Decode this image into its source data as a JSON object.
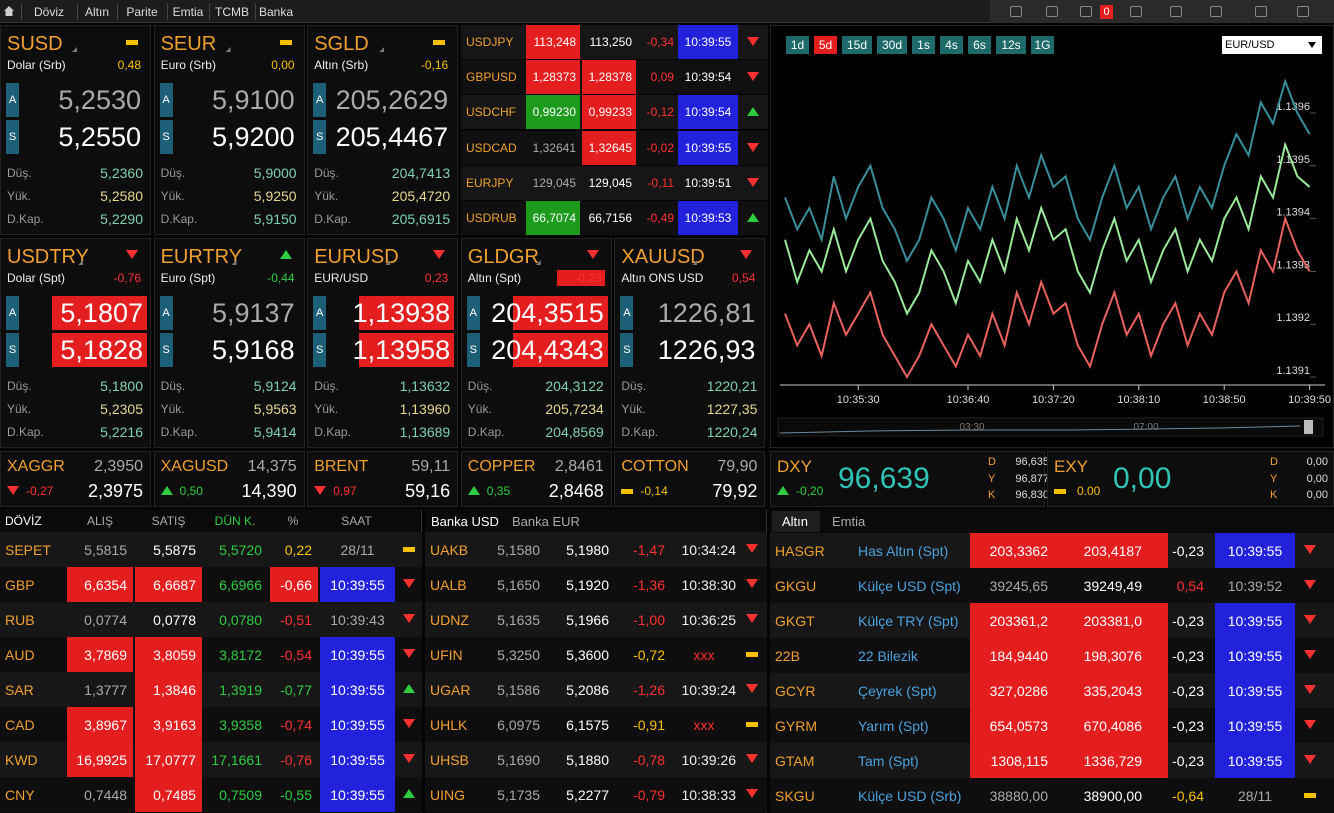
{
  "nav": {
    "items": [
      "Döviz",
      "Altın",
      "Parite",
      "Emtia",
      "TCMB",
      "Banka"
    ],
    "badge": "0"
  },
  "labels": {
    "bid": "A",
    "ask": "S",
    "low": "Düş.",
    "high": "Yük.",
    "prev": "D.Kap."
  },
  "tiles": [
    {
      "code": "SUSD",
      "name": "Dolar (Srb)",
      "change": "0,48",
      "bid": "5,2530",
      "ask": "5,2550",
      "low": "5,2360",
      "high": "5,2580",
      "prev": "5,2290",
      "arrow": "flat",
      "highlight": false
    },
    {
      "code": "SEUR",
      "name": "Euro (Srb)",
      "change": "0,00",
      "bid": "5,9100",
      "ask": "5,9200",
      "low": "5,9000",
      "high": "5,9250",
      "prev": "5,9150",
      "arrow": "flat",
      "highlight": false
    },
    {
      "code": "SGLD",
      "name": "Altın (Srb)",
      "change": "-0,16",
      "bid": "205,2629",
      "ask": "205,4467",
      "low": "204,7413",
      "high": "205,4720",
      "prev": "205,6915",
      "arrow": "flat",
      "highlight": false
    },
    {
      "code": "USDTRY",
      "name": "Dolar (Spt)",
      "change": "-0,76",
      "bid": "5,1807",
      "ask": "5,1828",
      "low": "5,1800",
      "high": "5,2305",
      "prev": "5,2216",
      "arrow": "down",
      "highlight": true
    },
    {
      "code": "EURTRY",
      "name": "Euro (Spt)",
      "change": "-0,44",
      "bid": "5,9137",
      "ask": "5,9168",
      "low": "5,9124",
      "high": "5,9563",
      "prev": "5,9414",
      "arrow": "up",
      "highlight": false
    },
    {
      "code": "EURUSD",
      "name": "EUR/USD",
      "change": "0,23",
      "bid": "1,13938",
      "ask": "1,13958",
      "low": "1,13632",
      "high": "1,13960",
      "prev": "1,13689",
      "arrow": "down",
      "highlight": true
    },
    {
      "code": "GLDGR",
      "name": "Altın (Spt)",
      "change": "-0,23",
      "bid": "204,3515",
      "ask": "204,4343",
      "low": "204,3122",
      "high": "205,7234",
      "prev": "204,8569",
      "arrow": "down",
      "highlight": true,
      "change_highlight": true
    },
    {
      "code": "XAUUSD",
      "name": "Altın ONS USD",
      "change": "0,54",
      "bid": "1226,81",
      "ask": "1226,93",
      "low": "1220,21",
      "high": "1227,35",
      "prev": "1220,24",
      "arrow": "down",
      "highlight": false
    }
  ],
  "parities": [
    {
      "code": "USDJPY",
      "bid": "113,248",
      "ask": "113,250",
      "change": "-0,34",
      "time": "10:39:55",
      "arrow": "down",
      "bid_bg": "red",
      "time_bg": "blue"
    },
    {
      "code": "GBPUSD",
      "bid": "1,28373",
      "ask": "1,28378",
      "change": "0,09",
      "time": "10:39:54",
      "arrow": "down",
      "bid_bg": "red",
      "ask_bg": "red"
    },
    {
      "code": "USDCHF",
      "bid": "0,99230",
      "ask": "0,99233",
      "change": "-0,12",
      "time": "10:39:54",
      "arrow": "up",
      "bid_bg": "green",
      "ask_bg": "red",
      "time_bg": "blue"
    },
    {
      "code": "USDCAD",
      "bid": "1,32641",
      "ask": "1,32645",
      "change": "-0,02",
      "time": "10:39:55",
      "arrow": "down",
      "ask_bg": "red",
      "time_bg": "blue"
    },
    {
      "code": "EURJPY",
      "bid": "129,045",
      "ask": "129,045",
      "change": "-0,11",
      "time": "10:39:51",
      "arrow": "down"
    },
    {
      "code": "USDRUB",
      "bid": "66,7074",
      "ask": "66,7156",
      "change": "-0,49",
      "time": "10:39:53",
      "arrow": "up",
      "bid_bg": "green",
      "time_bg": "blue"
    }
  ],
  "commodities": [
    {
      "code": "XAGGR",
      "prev": "2,3950",
      "change": "-0,27",
      "last": "2,3975",
      "arrow": "down"
    },
    {
      "code": "XAGUSD",
      "prev": "14,375",
      "change": "0,50",
      "last": "14,390",
      "arrow": "up"
    },
    {
      "code": "BRENT",
      "prev": "59,11",
      "change": "0,97",
      "last": "59,16",
      "arrow": "down"
    },
    {
      "code": "COPPER",
      "prev": "2,8461",
      "change": "0,35",
      "last": "2,8468",
      "arrow": "up"
    },
    {
      "code": "COTTON",
      "prev": "79,90",
      "change": "-0,14",
      "last": "79,92",
      "arrow": "flat"
    }
  ],
  "index_labels": {
    "d": "D",
    "y": "Y",
    "k": "K"
  },
  "indices": [
    {
      "code": "DXY",
      "value": "96,639",
      "change": "-0,20",
      "arrow": "up",
      "d": "96,635",
      "y": "96,877",
      "k": "96,830"
    },
    {
      "code": "EXY",
      "value": "0,00",
      "change": "0.00",
      "arrow": "flat",
      "d": "0,00",
      "y": "0,00",
      "k": "0,00"
    }
  ],
  "currency_table": {
    "headers": [
      "DÖVİZ",
      "ALIŞ",
      "SATIŞ",
      "DÜN K.",
      "%",
      "SAAT"
    ],
    "rows": [
      {
        "code": "SEPET",
        "bid": "5,5815",
        "ask": "5,5875",
        "prev": "5,5720",
        "change": "0,22",
        "time": "28/11",
        "arrow": "flat"
      },
      {
        "code": "GBP",
        "bid": "6,6354",
        "ask": "6,6687",
        "prev": "6,6966",
        "change": "-0,66",
        "time": "10:39:55",
        "arrow": "down",
        "bid_bg": "red",
        "ask_bg": "red",
        "change_bg": "red",
        "time_bg": "blue"
      },
      {
        "code": "RUB",
        "bid": "0,0774",
        "ask": "0,0778",
        "prev": "0,0780",
        "change": "-0,51",
        "time": "10:39:43",
        "arrow": "down"
      },
      {
        "code": "AUD",
        "bid": "3,7869",
        "ask": "3,8059",
        "prev": "3,8172",
        "change": "-0,54",
        "time": "10:39:55",
        "arrow": "down",
        "bid_bg": "red",
        "ask_bg": "red",
        "time_bg": "blue"
      },
      {
        "code": "SAR",
        "bid": "1,3777",
        "ask": "1,3846",
        "prev": "1,3919",
        "change": "-0,77",
        "time": "10:39:55",
        "arrow": "up",
        "ask_bg": "red",
        "time_bg": "blue"
      },
      {
        "code": "CAD",
        "bid": "3,8967",
        "ask": "3,9163",
        "prev": "3,9358",
        "change": "-0,74",
        "time": "10:39:55",
        "arrow": "down",
        "bid_bg": "red",
        "ask_bg": "red",
        "time_bg": "blue"
      },
      {
        "code": "KWD",
        "bid": "16,9925",
        "ask": "17,0777",
        "prev": "17,1661",
        "change": "-0,76",
        "time": "10:39:55",
        "arrow": "down",
        "bid_bg": "red",
        "ask_bg": "red",
        "time_bg": "blue"
      },
      {
        "code": "CNY",
        "bid": "0,7448",
        "ask": "0,7485",
        "prev": "0,7509",
        "change": "-0,55",
        "time": "10:39:55",
        "arrow": "up",
        "ask_bg": "red",
        "time_bg": "blue"
      }
    ]
  },
  "bank_table": {
    "tabs": [
      "Banka USD",
      "Banka EUR"
    ],
    "rows": [
      {
        "code": "UAKB",
        "bid": "5,1580",
        "ask": "5,1980",
        "change": "-1,47",
        "time": "10:34:24",
        "arrow": "down"
      },
      {
        "code": "UALB",
        "bid": "5,1650",
        "ask": "5,1920",
        "change": "-1,36",
        "time": "10:38:30",
        "arrow": "down"
      },
      {
        "code": "UDNZ",
        "bid": "5,1635",
        "ask": "5,1966",
        "change": "-1,00",
        "time": "10:36:25",
        "arrow": "down"
      },
      {
        "code": "UFIN",
        "bid": "5,3250",
        "ask": "5,3600",
        "change": "-0,72",
        "time": "xxx",
        "arrow": "flat"
      },
      {
        "code": "UGAR",
        "bid": "5,1586",
        "ask": "5,2086",
        "change": "-1,26",
        "time": "10:39:24",
        "arrow": "down"
      },
      {
        "code": "UHLK",
        "bid": "6,0975",
        "ask": "6,1575",
        "change": "-0,91",
        "time": "xxx",
        "arrow": "flat"
      },
      {
        "code": "UHSB",
        "bid": "5,1690",
        "ask": "5,1880",
        "change": "-0,78",
        "time": "10:39:26",
        "arrow": "down"
      },
      {
        "code": "UING",
        "bid": "5,1735",
        "ask": "5,2277",
        "change": "-0,79",
        "time": "10:38:33",
        "arrow": "down"
      }
    ]
  },
  "gold_table": {
    "tabs": [
      "Altın",
      "Emtia"
    ],
    "rows": [
      {
        "code": "HASGR",
        "name": "Has Altın (Spt)",
        "bid": "203,3362",
        "ask": "203,4187",
        "change": "-0,23",
        "time": "10:39:55",
        "arrow": "down",
        "bid_bg": "red",
        "ask_bg": "red",
        "time_bg": "blue"
      },
      {
        "code": "GKGU",
        "name": "Külçe USD (Spt)",
        "bid": "39245,65",
        "ask": "39249,49",
        "change": "0,54",
        "time": "10:39:52",
        "arrow": "down"
      },
      {
        "code": "GKGT",
        "name": "Külçe TRY (Spt)",
        "bid": "203361,2",
        "ask": "203381,0",
        "change": "-0,23",
        "time": "10:39:55",
        "arrow": "down",
        "bid_bg": "red",
        "ask_bg": "red",
        "time_bg": "blue"
      },
      {
        "code": "22B",
        "name": "22 Bilezik",
        "bid": "184,9440",
        "ask": "198,3076",
        "change": "-0,23",
        "time": "10:39:55",
        "arrow": "down",
        "bid_bg": "red",
        "ask_bg": "red",
        "time_bg": "blue"
      },
      {
        "code": "GCYR",
        "name": "Çeyrek (Spt)",
        "bid": "327,0286",
        "ask": "335,2043",
        "change": "-0,23",
        "time": "10:39:55",
        "arrow": "down",
        "bid_bg": "red",
        "ask_bg": "red",
        "time_bg": "blue"
      },
      {
        "code": "GYRM",
        "name": "Yarım (Spt)",
        "bid": "654,0573",
        "ask": "670,4086",
        "change": "-0,23",
        "time": "10:39:55",
        "arrow": "down",
        "bid_bg": "red",
        "ask_bg": "red",
        "time_bg": "blue"
      },
      {
        "code": "GTAM",
        "name": "Tam (Spt)",
        "bid": "1308,115",
        "ask": "1336,729",
        "change": "-0,23",
        "time": "10:39:55",
        "arrow": "down",
        "bid_bg": "red",
        "ask_bg": "red",
        "time_bg": "blue"
      },
      {
        "code": "SKGU",
        "name": "Külçe USD (Srb)",
        "bid": "38880,00",
        "ask": "38900,00",
        "change": "-0,64",
        "time": "28/11",
        "arrow": "flat"
      }
    ]
  },
  "chart_data": {
    "type": "line",
    "periods": [
      "1d",
      "5d",
      "15d",
      "30d",
      "1s",
      "4s",
      "6s",
      "12s",
      "1G"
    ],
    "selected_period": 1,
    "symbol": "EUR/USD",
    "mini_labels": [
      "03:30",
      "07:00"
    ],
    "categories": [
      null,
      null,
      null,
      null,
      null,
      null,
      "10:35:30",
      null,
      null,
      null,
      null,
      null,
      null,
      null,
      null,
      "10:36:40",
      null,
      null,
      null,
      null,
      null,
      null,
      "10:37:20",
      null,
      null,
      null,
      null,
      null,
      null,
      "10:38:10",
      null,
      null,
      null,
      null,
      null,
      null,
      "10:38:50",
      null,
      null,
      null,
      null,
      null,
      null,
      "10:39:50"
    ],
    "ylim": [
      1.13908,
      1.13975
    ],
    "yticks": [
      1.1391,
      1.1392,
      1.1393,
      1.1394,
      1.1395,
      1.1396
    ],
    "grid": false,
    "series": [
      {
        "color": "#3a8e9a",
        "values": [
          1.13944,
          1.13938,
          1.13942,
          1.13936,
          1.13948,
          1.1394,
          1.13946,
          1.1395,
          1.13942,
          1.13938,
          1.13932,
          1.13936,
          1.13944,
          1.1394,
          1.13934,
          1.13942,
          1.13938,
          1.13946,
          1.1394,
          1.1395,
          1.13944,
          1.13952,
          1.13946,
          1.13948,
          1.1394,
          1.13936,
          1.13944,
          1.1395,
          1.13942,
          1.13946,
          1.13938,
          1.13944,
          1.13948,
          1.1394,
          1.13946,
          1.13942,
          1.1395,
          1.13956,
          1.13952,
          1.13962,
          1.13958,
          1.13966,
          1.1396,
          1.13956
        ]
      },
      {
        "color": "#9ae89a",
        "values": [
          1.13936,
          1.13928,
          1.13934,
          1.1393,
          1.13938,
          1.1393,
          1.13936,
          1.1394,
          1.13932,
          1.13928,
          1.13922,
          1.13926,
          1.13934,
          1.1393,
          1.13924,
          1.13932,
          1.13928,
          1.13936,
          1.1393,
          1.1394,
          1.13934,
          1.13942,
          1.13936,
          1.13938,
          1.1393,
          1.13926,
          1.13934,
          1.1394,
          1.13932,
          1.13936,
          1.13928,
          1.13934,
          1.13938,
          1.1393,
          1.13936,
          1.13932,
          1.1394,
          1.13944,
          1.13938,
          1.13948,
          1.13944,
          1.13954,
          1.13948,
          1.13946
        ]
      },
      {
        "color": "#e8625e",
        "values": [
          1.13922,
          1.13916,
          1.1392,
          1.13914,
          1.13924,
          1.13918,
          1.13922,
          1.13926,
          1.13918,
          1.13914,
          1.1391,
          1.13914,
          1.1392,
          1.13916,
          1.13912,
          1.13918,
          1.13914,
          1.13922,
          1.13916,
          1.13926,
          1.1392,
          1.13928,
          1.13922,
          1.13924,
          1.13916,
          1.13912,
          1.1392,
          1.13926,
          1.13918,
          1.13922,
          1.13914,
          1.1392,
          1.13924,
          1.13916,
          1.13922,
          1.13918,
          1.13926,
          1.1393,
          1.13924,
          1.13934,
          1.1393,
          1.1394,
          1.13934,
          1.1393
        ]
      }
    ]
  }
}
